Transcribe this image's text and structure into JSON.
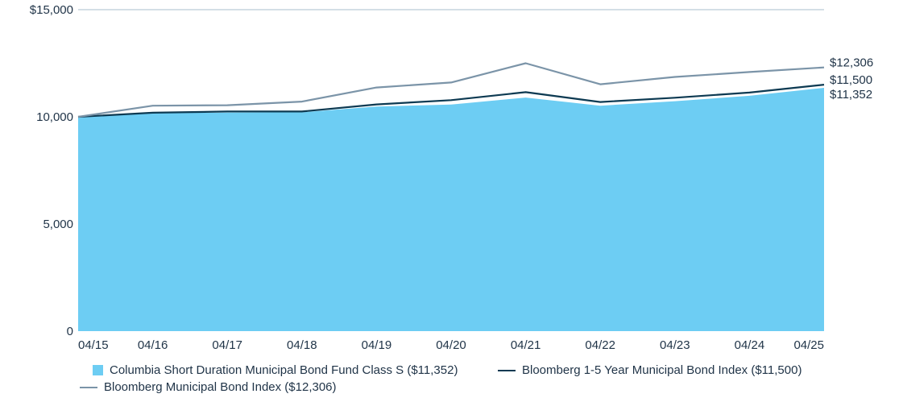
{
  "chart_data": {
    "type": "area",
    "categories": [
      "04/15",
      "04/16",
      "04/17",
      "04/18",
      "04/19",
      "04/20",
      "04/21",
      "04/22",
      "04/23",
      "04/24",
      "04/25"
    ],
    "ylim": [
      0,
      15000
    ],
    "y_ticks": [
      {
        "value": 0,
        "label": "0"
      },
      {
        "value": 5000,
        "label": "5,000"
      },
      {
        "value": 10000,
        "label": "10,000"
      },
      {
        "value": 15000,
        "label": "$15,000"
      }
    ],
    "grid": "top line only",
    "legend_position": "bottom",
    "series": [
      {
        "name": "Columbia Short Duration Municipal Bond Fund Class S ($11,352)",
        "style": "area",
        "color": "#6dcdf3",
        "values": [
          10000,
          10170,
          10200,
          10210,
          10480,
          10570,
          10900,
          10520,
          10730,
          10980,
          11352
        ],
        "end_label": "$11,352"
      },
      {
        "name": "Bloomberg 1-5 Year Municipal Bond Index ($11,500)",
        "style": "line",
        "color": "#0d3a52",
        "values": [
          10000,
          10190,
          10250,
          10250,
          10580,
          10780,
          11150,
          10690,
          10890,
          11130,
          11500
        ],
        "end_label": "$11,500"
      },
      {
        "name": "Bloomberg Municipal Bond Index ($12,306)",
        "style": "line",
        "color": "#7b94a8",
        "values": [
          10000,
          10520,
          10540,
          10710,
          11370,
          11600,
          12500,
          11520,
          11860,
          12090,
          12306
        ],
        "end_label": "$12,306"
      }
    ]
  }
}
